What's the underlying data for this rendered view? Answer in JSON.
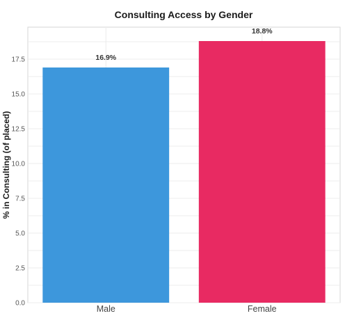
{
  "chart_data": {
    "type": "bar",
    "title": "Consulting Access by Gender",
    "xlabel": "",
    "ylabel": "% in Consulting (of placed)",
    "categories": [
      "Male",
      "Female"
    ],
    "values": [
      16.9,
      18.8
    ],
    "data_labels": [
      "16.9%",
      "18.8%"
    ],
    "colors": [
      "#3d97dc",
      "#e82a62"
    ],
    "ylim": [
      0,
      19.8
    ],
    "yticks": [
      0.0,
      2.5,
      5.0,
      7.5,
      10.0,
      12.5,
      15.0,
      17.5
    ],
    "ytick_labels": [
      "0.0",
      "2.5",
      "5.0",
      "7.5",
      "10.0",
      "12.5",
      "15.0",
      "17.5"
    ],
    "grid": true,
    "legend": "none"
  }
}
